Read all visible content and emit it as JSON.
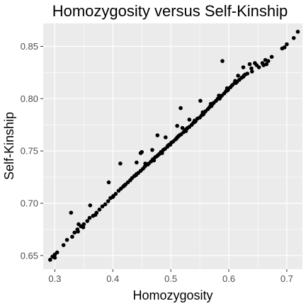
{
  "chart_data": {
    "type": "scatter",
    "title": "Homozygosity versus Self-Kinship",
    "xlabel": "Homozygosity",
    "ylabel": "Self-Kinship",
    "xlim": [
      0.28,
      0.727
    ],
    "ylim": [
      0.637,
      0.872
    ],
    "x_ticks": [
      0.3,
      0.4,
      0.5,
      0.6,
      0.7
    ],
    "x_tick_labels": [
      "0.3",
      "0.4",
      "0.5",
      "0.6",
      "0.7"
    ],
    "y_ticks": [
      0.65,
      0.7,
      0.75,
      0.8,
      0.85
    ],
    "y_tick_labels": [
      "0.65",
      "0.70",
      "0.75",
      "0.80",
      "0.85"
    ],
    "grid": true,
    "legend": "none",
    "colors": {
      "panel_background": "#ebebeb",
      "grid": "#ffffff",
      "point": "#000000",
      "tick": "#333333"
    },
    "points": [
      [
        0.292,
        0.646
      ],
      [
        0.296,
        0.649
      ],
      [
        0.3,
        0.651
      ],
      [
        0.304,
        0.653
      ],
      [
        0.315,
        0.66
      ],
      [
        0.321,
        0.665
      ],
      [
        0.33,
        0.668
      ],
      [
        0.334,
        0.672
      ],
      [
        0.339,
        0.675
      ],
      [
        0.345,
        0.678
      ],
      [
        0.35,
        0.68
      ],
      [
        0.356,
        0.683
      ],
      [
        0.36,
        0.686
      ],
      [
        0.366,
        0.688
      ],
      [
        0.372,
        0.691
      ],
      [
        0.377,
        0.694
      ],
      [
        0.382,
        0.697
      ],
      [
        0.387,
        0.699
      ],
      [
        0.392,
        0.702
      ],
      [
        0.396,
        0.705
      ],
      [
        0.401,
        0.707
      ],
      [
        0.405,
        0.709
      ],
      [
        0.41,
        0.712
      ],
      [
        0.414,
        0.714
      ],
      [
        0.418,
        0.716
      ],
      [
        0.422,
        0.718
      ],
      [
        0.426,
        0.72
      ],
      [
        0.43,
        0.722
      ],
      [
        0.433,
        0.724
      ],
      [
        0.437,
        0.726
      ],
      [
        0.441,
        0.728
      ],
      [
        0.444,
        0.729
      ],
      [
        0.448,
        0.731
      ],
      [
        0.452,
        0.733
      ],
      [
        0.455,
        0.735
      ],
      [
        0.459,
        0.737
      ],
      [
        0.462,
        0.738
      ],
      [
        0.466,
        0.74
      ],
      [
        0.469,
        0.742
      ],
      [
        0.473,
        0.744
      ],
      [
        0.476,
        0.745
      ],
      [
        0.48,
        0.747
      ],
      [
        0.483,
        0.749
      ],
      [
        0.487,
        0.751
      ],
      [
        0.49,
        0.752
      ],
      [
        0.494,
        0.754
      ],
      [
        0.497,
        0.756
      ],
      [
        0.501,
        0.758
      ],
      [
        0.504,
        0.759
      ],
      [
        0.508,
        0.761
      ],
      [
        0.511,
        0.763
      ],
      [
        0.515,
        0.765
      ],
      [
        0.518,
        0.766
      ],
      [
        0.522,
        0.768
      ],
      [
        0.525,
        0.77
      ],
      [
        0.529,
        0.772
      ],
      [
        0.532,
        0.773
      ],
      [
        0.536,
        0.775
      ],
      [
        0.539,
        0.777
      ],
      [
        0.543,
        0.779
      ],
      [
        0.546,
        0.781
      ],
      [
        0.55,
        0.782
      ],
      [
        0.553,
        0.784
      ],
      [
        0.557,
        0.786
      ],
      [
        0.56,
        0.788
      ],
      [
        0.564,
        0.79
      ],
      [
        0.567,
        0.792
      ],
      [
        0.571,
        0.794
      ],
      [
        0.574,
        0.796
      ],
      [
        0.578,
        0.798
      ],
      [
        0.581,
        0.8
      ],
      [
        0.585,
        0.801
      ],
      [
        0.588,
        0.803
      ],
      [
        0.592,
        0.805
      ],
      [
        0.595,
        0.807
      ],
      [
        0.599,
        0.809
      ],
      [
        0.603,
        0.811
      ],
      [
        0.606,
        0.813
      ],
      [
        0.61,
        0.815
      ],
      [
        0.614,
        0.816
      ],
      [
        0.618,
        0.818
      ],
      [
        0.622,
        0.82
      ],
      [
        0.626,
        0.822
      ],
      [
        0.632,
        0.824
      ],
      [
        0.64,
        0.826
      ],
      [
        0.652,
        0.83
      ],
      [
        0.66,
        0.832
      ],
      [
        0.668,
        0.836
      ],
      [
        0.674,
        0.84
      ],
      [
        0.692,
        0.848
      ],
      [
        0.7,
        0.852
      ],
      [
        0.712,
        0.858
      ],
      [
        0.719,
        0.864
      ],
      [
        0.3,
        0.648
      ],
      [
        0.34,
        0.673
      ],
      [
        0.37,
        0.689
      ],
      [
        0.4,
        0.706
      ],
      [
        0.42,
        0.717
      ],
      [
        0.44,
        0.727
      ],
      [
        0.46,
        0.737
      ],
      [
        0.478,
        0.746
      ],
      [
        0.495,
        0.755
      ],
      [
        0.51,
        0.762
      ],
      [
        0.526,
        0.769
      ],
      [
        0.542,
        0.778
      ],
      [
        0.556,
        0.785
      ],
      [
        0.57,
        0.793
      ],
      [
        0.584,
        0.8
      ],
      [
        0.598,
        0.808
      ],
      [
        0.612,
        0.815
      ],
      [
        0.628,
        0.823
      ],
      [
        0.471,
        0.741
      ],
      [
        0.485,
        0.748
      ],
      [
        0.499,
        0.756
      ],
      [
        0.513,
        0.764
      ],
      [
        0.527,
        0.771
      ],
      [
        0.541,
        0.779
      ],
      [
        0.555,
        0.787
      ],
      [
        0.569,
        0.795
      ],
      [
        0.583,
        0.803
      ],
      [
        0.597,
        0.81
      ],
      [
        0.611,
        0.817
      ],
      [
        0.625,
        0.821
      ],
      [
        0.639,
        0.829
      ],
      [
        0.648,
        0.832
      ],
      [
        0.658,
        0.834
      ],
      [
        0.665,
        0.833
      ],
      [
        0.696,
        0.849
      ],
      [
        0.328,
        0.691
      ],
      [
        0.341,
        0.68
      ],
      [
        0.361,
        0.698
      ],
      [
        0.349,
        0.677
      ],
      [
        0.393,
        0.72
      ],
      [
        0.413,
        0.738
      ],
      [
        0.441,
        0.739
      ],
      [
        0.448,
        0.748
      ],
      [
        0.45,
        0.749
      ],
      [
        0.456,
        0.738
      ],
      [
        0.468,
        0.751
      ],
      [
        0.477,
        0.765
      ],
      [
        0.491,
        0.763
      ],
      [
        0.511,
        0.774
      ],
      [
        0.517,
        0.791
      ],
      [
        0.52,
        0.772
      ],
      [
        0.532,
        0.78
      ],
      [
        0.551,
        0.798
      ],
      [
        0.589,
        0.836
      ],
      [
        0.616,
        0.822
      ],
      [
        0.625,
        0.83
      ],
      [
        0.636,
        0.833
      ],
      [
        0.645,
        0.834
      ],
      [
        0.663,
        0.837
      ]
    ]
  }
}
